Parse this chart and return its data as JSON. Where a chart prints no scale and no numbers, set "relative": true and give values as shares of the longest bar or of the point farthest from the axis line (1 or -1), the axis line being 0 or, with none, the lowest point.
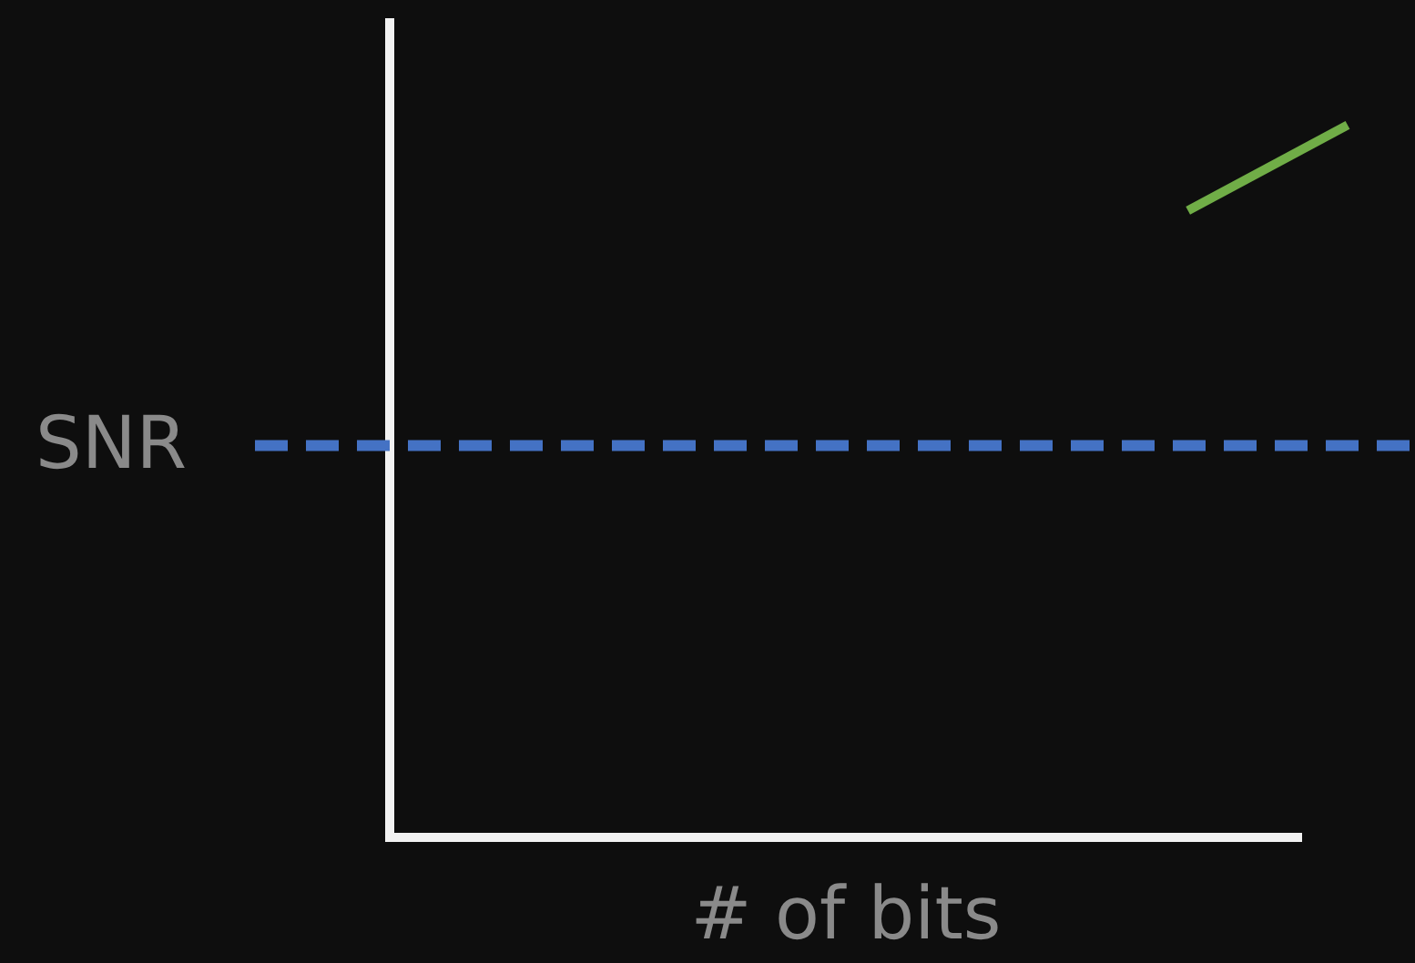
{
  "chart_data": {
    "type": "line",
    "xlabel": "# of bits",
    "relative": true,
    "marker": "none",
    "categories": [
      null,
      null,
      null,
      null,
      null,
      null,
      null
    ],
    "series": [
      {
        "color": "#70ad47",
        "values": [
          null,
          null,
          null,
          null,
          null,
          0.88,
          1
        ]
      }
    ],
    "ref_lines": [
      {
        "axis": "y",
        "value": 0.55,
        "label": "SNR",
        "color": "#4472c4",
        "line_style": "dashed"
      }
    ]
  }
}
